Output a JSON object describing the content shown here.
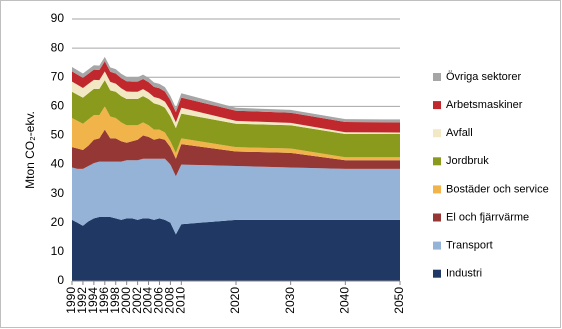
{
  "chart_data": {
    "type": "stacked-area",
    "y_label": "Mton CO₂-ekv.",
    "x": [
      1990,
      1991,
      1992,
      1993,
      1994,
      1995,
      1996,
      1997,
      1998,
      1999,
      2000,
      2001,
      2002,
      2003,
      2004,
      2005,
      2006,
      2007,
      2008,
      2009,
      2010,
      2020,
      2030,
      2040,
      2050
    ],
    "xlim": [
      1990,
      2050
    ],
    "xticks": [
      1990,
      1992,
      1994,
      1996,
      1998,
      2000,
      2002,
      2004,
      2006,
      2008,
      2010,
      2020,
      2030,
      2040,
      2050
    ],
    "ylim": [
      0,
      90
    ],
    "yticks": [
      0,
      10,
      20,
      30,
      40,
      50,
      60,
      70,
      80,
      90
    ],
    "grid": true,
    "legend": "right",
    "series": [
      {
        "name": "Industri",
        "color": "#1f3864",
        "values": [
          21,
          20,
          19,
          20.5,
          21.5,
          22,
          22,
          22,
          21.5,
          21,
          21.5,
          21.5,
          21,
          21.5,
          21.5,
          21,
          21.5,
          21,
          20,
          16,
          19.5,
          21,
          21,
          21,
          21
        ]
      },
      {
        "name": "Transport",
        "color": "#95b3d7",
        "values": [
          18,
          18.5,
          19.5,
          19,
          19,
          19,
          19,
          19,
          19.5,
          20,
          20,
          20,
          20.5,
          20.5,
          20.5,
          21,
          20.5,
          21,
          20,
          20,
          20.5,
          18.5,
          18,
          17.5,
          17.5
        ]
      },
      {
        "name": "El och fjärrvärme",
        "color": "#953735",
        "values": [
          7,
          7,
          6.5,
          7,
          8,
          8,
          11,
          8,
          8,
          7,
          6,
          6.5,
          7,
          8,
          7.5,
          6.5,
          7,
          6.5,
          6,
          6,
          7,
          5,
          5,
          3,
          3
        ]
      },
      {
        "name": "Bostäder och service",
        "color": "#f0b44a",
        "values": [
          10,
          9.5,
          9,
          9,
          8.5,
          8,
          8,
          7.5,
          7,
          6.5,
          6,
          5.5,
          5,
          4.5,
          4,
          3.5,
          3,
          2.5,
          2,
          2,
          2,
          1.5,
          1.5,
          1,
          1
        ]
      },
      {
        "name": "Jordbruk",
        "color": "#8a9a1c",
        "values": [
          9,
          9,
          9,
          9,
          9,
          9,
          9,
          9,
          9,
          9,
          9,
          9,
          9,
          9,
          9,
          9,
          8.5,
          8.5,
          8.5,
          8.5,
          8.5,
          8,
          8,
          8,
          8
        ]
      },
      {
        "name": "Avfall",
        "color": "#f3e8c4",
        "values": [
          3.5,
          3.4,
          3.3,
          3.2,
          3.1,
          3,
          3,
          2.9,
          2.8,
          2.7,
          2.6,
          2.5,
          2.5,
          2.4,
          2.3,
          2.2,
          2.2,
          2.1,
          2.1,
          2,
          2,
          1,
          0.8,
          0.6,
          0.5
        ]
      },
      {
        "name": "Arbetsmaskiner",
        "color": "#c0282d",
        "values": [
          3.5,
          3.5,
          3.5,
          3.5,
          3.5,
          3.5,
          3.5,
          3.5,
          3.5,
          3.5,
          3.5,
          3.5,
          3.5,
          3.5,
          3.5,
          3.5,
          3.5,
          3.5,
          3.5,
          3.5,
          3.5,
          3.5,
          3.5,
          3.5,
          3.5
        ]
      },
      {
        "name": "Övriga sektorer",
        "color": "#a6a6a6",
        "values": [
          1.5,
          1.5,
          1.5,
          1.5,
          1.5,
          1.5,
          1.5,
          1.5,
          1.5,
          1.5,
          1.5,
          1.5,
          1.5,
          1.5,
          1.5,
          1.5,
          1.5,
          1.5,
          1.5,
          1.5,
          1.5,
          1,
          1,
          1,
          1
        ]
      }
    ]
  }
}
